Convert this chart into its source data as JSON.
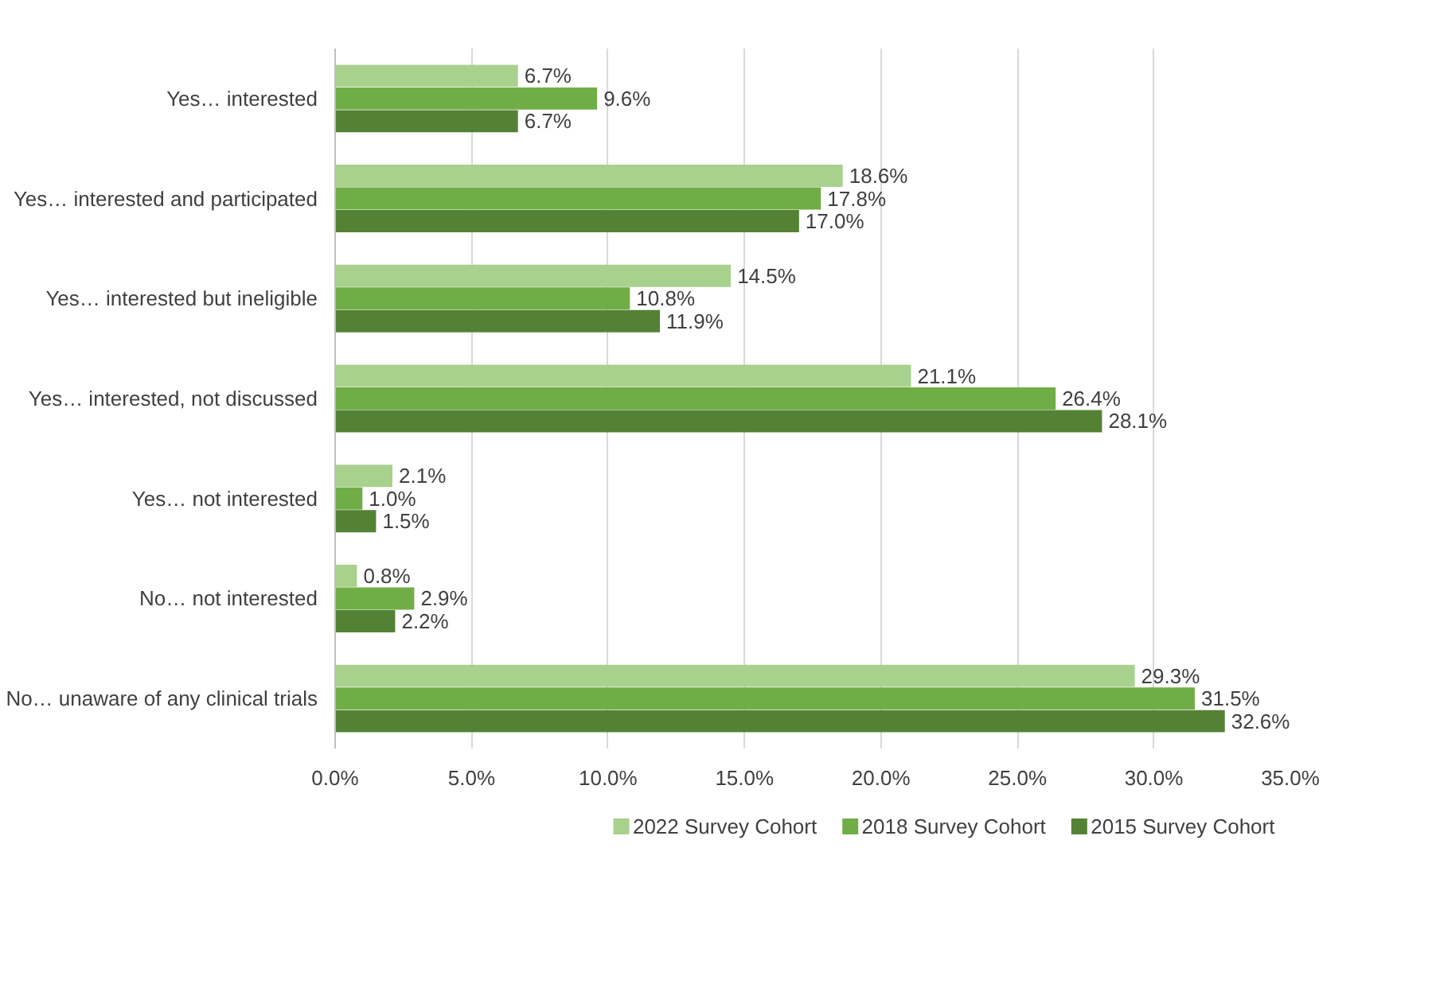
{
  "chart_data": {
    "type": "bar",
    "orientation": "horizontal",
    "categories": [
      "Yes… interested",
      "Yes… interested and participated",
      "Yes… interested but ineligible",
      "Yes… interested, not discussed",
      "Yes… not interested",
      "No… not interested",
      "No… unaware of any clinical trials"
    ],
    "series": [
      {
        "name": "2022 Survey Cohort",
        "color": "#a9d18e",
        "values": [
          6.7,
          18.6,
          14.5,
          21.1,
          2.1,
          0.8,
          29.3
        ],
        "value_labels": [
          "6.7%",
          "18.6%",
          "14.5%",
          "21.1%",
          "2.1%",
          "0.8%",
          "29.3%"
        ]
      },
      {
        "name": "2018 Survey Cohort",
        "color": "#70ad47",
        "values": [
          9.6,
          17.8,
          10.8,
          26.4,
          1.0,
          2.9,
          31.5
        ],
        "value_labels": [
          "9.6%",
          "17.8%",
          "10.8%",
          "26.4%",
          "1.0%",
          "2.9%",
          "31.5%"
        ]
      },
      {
        "name": "2015 Survey Cohort",
        "color": "#548235",
        "values": [
          6.7,
          17.0,
          11.9,
          28.1,
          1.5,
          2.2,
          32.6
        ],
        "value_labels": [
          "6.7%",
          "17.0%",
          "11.9%",
          "28.1%",
          "1.5%",
          "2.2%",
          "32.6%"
        ]
      }
    ],
    "xlim": [
      0,
      35
    ],
    "xticks": [
      {
        "value": 0,
        "label": "0.0%"
      },
      {
        "value": 5,
        "label": "5.0%"
      },
      {
        "value": 10,
        "label": "10.0%"
      },
      {
        "value": 15,
        "label": "15.0%"
      },
      {
        "value": 20,
        "label": "20.0%"
      },
      {
        "value": 25,
        "label": "25.0%"
      },
      {
        "value": 30,
        "label": "30.0%"
      },
      {
        "value": 35,
        "label": "35.0%"
      }
    ],
    "grid": "x",
    "legend": "bottom"
  }
}
